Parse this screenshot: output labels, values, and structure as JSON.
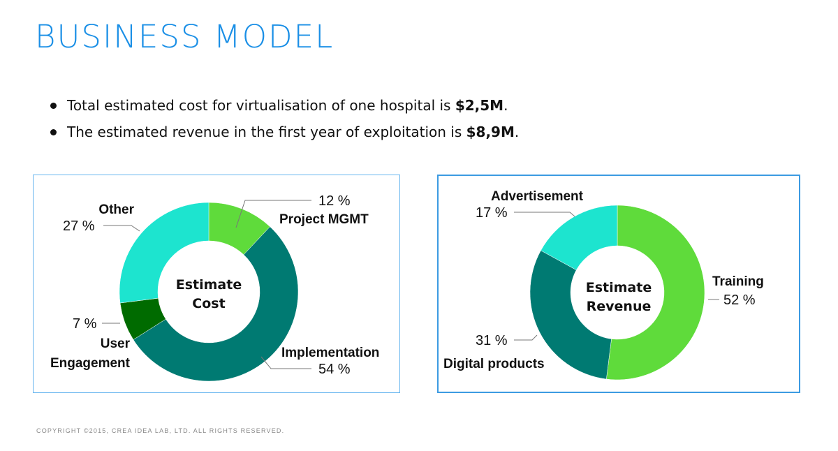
{
  "title": "BUSINESS MODEL",
  "bullets": [
    {
      "text": "Total estimated cost for virtualisation of one hospital is ",
      "value": "$2,5M",
      "end": "."
    },
    {
      "text": "The estimated revenue in the first year of exploitation is ",
      "value": "$8,9M",
      "end": "."
    }
  ],
  "footer": "COPYRIGHT ©2015, CREA IDEA LAB, LTD. ALL RIGHTS RESERVED.",
  "chart_data": [
    {
      "type": "pie",
      "donut": true,
      "center_label": [
        "Estimate",
        "Cost"
      ],
      "slices": [
        {
          "label": "Project MGMT",
          "value": 12,
          "value_text": "12 %",
          "color": "#5fdb3b"
        },
        {
          "label": "Implementation",
          "value": 54,
          "value_text": "54 %",
          "color": "#007a72"
        },
        {
          "label": "User Engagement",
          "label_lines": [
            "User",
            "Engagement"
          ],
          "value": 7,
          "value_text": "7 %",
          "color": "#006b00"
        },
        {
          "label": "Other",
          "value": 27,
          "value_text": "27 %",
          "color": "#1de4cf"
        }
      ]
    },
    {
      "type": "pie",
      "donut": true,
      "center_label": [
        "Estimate",
        "Revenue"
      ],
      "slices": [
        {
          "label": "Training",
          "value": 52,
          "value_text": "52 %",
          "color": "#5fdb3b"
        },
        {
          "label": "Digital products",
          "value": 31,
          "value_text": "31 %",
          "color": "#007a72"
        },
        {
          "label": "Advertisement",
          "value": 17,
          "value_text": "17 %",
          "color": "#1de4cf"
        }
      ]
    }
  ]
}
